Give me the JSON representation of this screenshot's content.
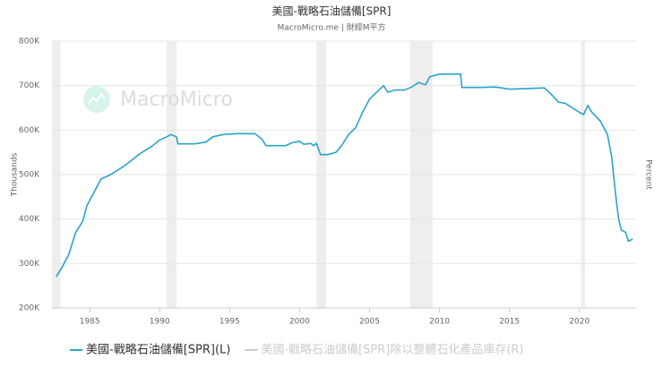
{
  "chart_data": {
    "type": "line",
    "title": "美國-戰略石油儲備[SPR]",
    "subtitle": "MacroMicro.me | 財經M平方",
    "watermark": "MacroMicro",
    "y_label": "Thousands",
    "y2_label": "Percent",
    "x": [
      1982.6,
      1983.0,
      1983.5,
      1984.0,
      1984.5,
      1984.8,
      1985.3,
      1985.8,
      1986.5,
      1987.5,
      1988.5,
      1989.5,
      1990.0,
      1990.5,
      1990.8,
      1991.2,
      1991.3,
      1992.5,
      1993.3,
      1993.8,
      1994.5,
      1995.5,
      1996.8,
      1997.3,
      1997.6,
      1999.0,
      1999.5,
      2000.0,
      2000.3,
      2000.8,
      2001.0,
      2001.2,
      2001.5,
      2002.0,
      2002.6,
      2003.0,
      2003.5,
      2004.0,
      2004.5,
      2005.0,
      2005.5,
      2006.0,
      2006.3,
      2006.8,
      2007.5,
      2008.0,
      2008.5,
      2009.0,
      2009.3,
      2010.0,
      2011.5,
      2011.6,
      2013.0,
      2014.0,
      2015.0,
      2016.0,
      2017.5,
      2018.0,
      2018.5,
      2019.0,
      2019.5,
      2020.0,
      2020.3,
      2020.6,
      2020.9,
      2021.5,
      2022.0,
      2022.3,
      2022.6,
      2022.8,
      2023.0,
      2023.3,
      2023.5,
      2023.8
    ],
    "series": [
      {
        "name": "美國-戰略石油儲備[SPR](L)",
        "color": "#2aa3c8",
        "values": [
          270000,
          290000,
          320000,
          370000,
          395000,
          430000,
          460000,
          490000,
          500000,
          520000,
          545000,
          565000,
          578000,
          585000,
          590000,
          585000,
          569000,
          569000,
          573000,
          585000,
          590000,
          592000,
          592000,
          580000,
          565000,
          565000,
          572000,
          575000,
          568000,
          570000,
          565000,
          570000,
          545000,
          545000,
          550000,
          565000,
          590000,
          605000,
          640000,
          670000,
          685000,
          700000,
          685000,
          690000,
          690000,
          697000,
          707000,
          702000,
          720000,
          726000,
          726000,
          696000,
          696000,
          697000,
          692000,
          693000,
          695000,
          680000,
          663000,
          660000,
          650000,
          640000,
          635000,
          655000,
          640000,
          620000,
          590000,
          540000,
          450000,
          400000,
          375000,
          370000,
          350000,
          355000
        ]
      }
    ],
    "hidden_series": [
      {
        "name": "美國-戰略石油儲備[SPR]除以整體石化產品庫存(R)",
        "color": "#cccccc"
      }
    ],
    "shaded_periods": [
      [
        1982.3,
        1982.9
      ],
      [
        1990.5,
        1991.2
      ],
      [
        2001.2,
        2001.9
      ],
      [
        2007.9,
        2009.5
      ],
      [
        2020.1,
        2020.4
      ]
    ],
    "shade_color": "#eeeeee",
    "xlim": [
      1982.3,
      2024.05
    ],
    "xticks": [
      1985,
      1990,
      1995,
      2000,
      2005,
      2010,
      2015,
      2020
    ],
    "ylim": [
      200000,
      800000
    ],
    "yticks": [
      {
        "value": 200000,
        "label": "200K"
      },
      {
        "value": 300000,
        "label": "300K"
      },
      {
        "value": 400000,
        "label": "400K"
      },
      {
        "value": 500000,
        "label": "500K"
      },
      {
        "value": 600000,
        "label": "600K"
      },
      {
        "value": 700000,
        "label": "700K"
      },
      {
        "value": 800000,
        "label": "800K"
      }
    ],
    "grid": true
  }
}
